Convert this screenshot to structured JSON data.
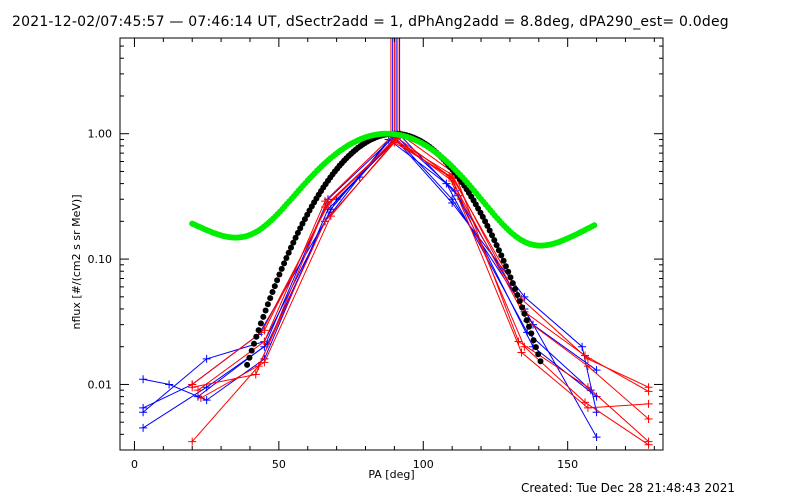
{
  "header": {
    "title": "2021-12-02/07:45:57 — 07:46:14 UT, dSectr2add = 1, dPhAng2add = 8.8deg, dPA290_est=  0.0deg"
  },
  "footer": {
    "created": "Created: Tue Dec 28 21:48:43 2021"
  },
  "chart_data": {
    "type": "scatter",
    "xlabel": "PA [deg]",
    "ylabel": "nflux [#/(cm2 s sr MeV)]",
    "xlim": [
      -5,
      183
    ],
    "ylim": [
      0.003,
      5.8
    ],
    "yscale": "log",
    "x_ticks": [
      0,
      50,
      100,
      150
    ],
    "x_tick_labels": [
      "0",
      "50",
      "100",
      "150"
    ],
    "y_ticks": [
      0.01,
      0.1,
      1.0
    ],
    "y_tick_labels": [
      "0.01",
      "0.10",
      "1.00"
    ],
    "grid": false,
    "vertical_markers": [
      {
        "x": 88.8,
        "color": "#ff0000"
      },
      {
        "x": 89.4,
        "color": "#0000ff"
      },
      {
        "x": 90.0,
        "color": "#ff0000"
      },
      {
        "x": 90.6,
        "color": "#0000ff"
      },
      {
        "x": 91.2,
        "color": "#ff0000"
      },
      {
        "x": 91.8,
        "color": "#0000ff"
      }
    ],
    "series": [
      {
        "color": "#0000ff",
        "kind": "line-plus",
        "points": [
          [
            3,
            0.011
          ],
          [
            12,
            0.01
          ],
          [
            25,
            0.0075
          ],
          [
            45,
            0.016
          ],
          [
            67,
            0.25
          ],
          [
            78,
            0.45
          ],
          [
            90,
            0.92
          ],
          [
            110,
            0.28
          ],
          [
            135,
            0.05
          ],
          [
            155,
            0.02
          ],
          [
            160,
            0.006
          ]
        ]
      },
      {
        "color": "#0000ff",
        "kind": "line-plus",
        "points": [
          [
            3,
            0.0045
          ],
          [
            25,
            0.0095
          ],
          [
            45,
            0.02
          ],
          [
            67,
            0.3
          ],
          [
            90,
            0.95
          ],
          [
            110,
            0.3
          ],
          [
            135,
            0.04
          ],
          [
            160,
            0.0038
          ]
        ]
      },
      {
        "color": "#0000ff",
        "kind": "line-plus",
        "points": [
          [
            3,
            0.006
          ],
          [
            25,
            0.016
          ],
          [
            45,
            0.022
          ],
          [
            70,
            0.3
          ],
          [
            92,
            0.97
          ],
          [
            112,
            0.32
          ],
          [
            138,
            0.03
          ],
          [
            160,
            0.013
          ]
        ]
      },
      {
        "color": "#0000ff",
        "kind": "line-plus",
        "points": [
          [
            3,
            0.0065
          ],
          [
            20,
            0.01
          ],
          [
            43,
            0.025
          ],
          [
            66,
            0.2
          ],
          [
            88,
            0.9
          ],
          [
            108,
            0.4
          ],
          [
            136,
            0.026
          ],
          [
            158,
            0.009
          ]
        ]
      },
      {
        "color": "#0000ff",
        "kind": "line-plus",
        "points": [
          [
            22,
            0.008
          ],
          [
            46,
            0.021
          ],
          [
            68,
            0.25
          ],
          [
            90,
            0.98
          ],
          [
            111,
            0.35
          ],
          [
            138,
            0.02
          ],
          [
            160,
            0.008
          ]
        ]
      },
      {
        "color": "#ff0000",
        "kind": "line-plus",
        "points": [
          [
            20,
            0.0035
          ],
          [
            43,
            0.014
          ],
          [
            66,
            0.2
          ],
          [
            90,
            0.85
          ],
          [
            110,
            0.45
          ],
          [
            134,
            0.048
          ],
          [
            157,
            0.016
          ],
          [
            178,
            0.0095
          ]
        ]
      },
      {
        "color": "#ff0000",
        "kind": "line-plus",
        "points": [
          [
            20,
            0.01
          ],
          [
            44,
            0.026
          ],
          [
            67,
            0.27
          ],
          [
            90,
            0.9
          ],
          [
            110,
            0.47
          ],
          [
            135,
            0.038
          ],
          [
            156,
            0.017
          ],
          [
            178,
            0.0088
          ]
        ]
      },
      {
        "color": "#ff0000",
        "kind": "line-plus",
        "points": [
          [
            22,
            0.009
          ],
          [
            45,
            0.022
          ],
          [
            66,
            0.29
          ],
          [
            89,
            0.95
          ],
          [
            110,
            0.42
          ],
          [
            136,
            0.032
          ],
          [
            157,
            0.014
          ],
          [
            178,
            0.0053
          ]
        ]
      },
      {
        "color": "#ff0000",
        "kind": "line-plus",
        "points": [
          [
            23,
            0.0078
          ],
          [
            45,
            0.015
          ],
          [
            68,
            0.22
          ],
          [
            92,
            0.99
          ],
          [
            111,
            0.48
          ],
          [
            133,
            0.022
          ],
          [
            157,
            0.0095
          ],
          [
            178,
            0.0035
          ]
        ]
      },
      {
        "color": "#ff0000",
        "kind": "line-plus",
        "points": [
          [
            20,
            0.0095
          ],
          [
            42,
            0.012
          ],
          [
            66,
            0.26
          ],
          [
            90,
            0.88
          ],
          [
            110,
            0.44
          ],
          [
            135,
            0.02
          ],
          [
            156,
            0.0072
          ],
          [
            178,
            0.0033
          ]
        ]
      },
      {
        "color": "#ff0000",
        "kind": "line-plus",
        "points": [
          [
            45,
            0.027
          ],
          [
            67,
            0.28
          ],
          [
            91,
            0.93
          ],
          [
            109,
            0.46
          ],
          [
            134,
            0.018
          ],
          [
            157,
            0.0065
          ],
          [
            178,
            0.007
          ]
        ]
      },
      {
        "color": "#000000",
        "kind": "dots",
        "model": "gaussian",
        "amplitude": 1.0,
        "center": 90,
        "sigma": 17.5,
        "x_range": [
          39,
          141
        ]
      },
      {
        "color": "#00ee00",
        "kind": "dots",
        "model": "gaussian-plus-quadratic",
        "amplitude": 1.0,
        "center": 87.5,
        "sigma": 20,
        "quad_coeff": 3.85e-05,
        "quad_center": 90,
        "x_range": [
          20,
          160
        ]
      }
    ]
  }
}
